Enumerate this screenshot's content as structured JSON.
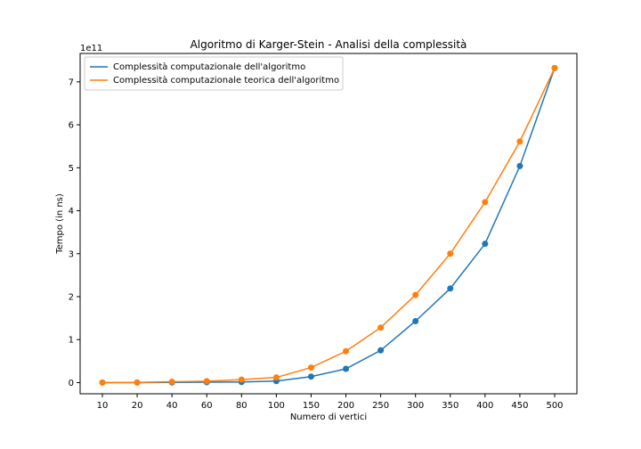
{
  "chart_data": {
    "type": "line",
    "title": "Algoritmo di Karger-Stein - Analisi della complessità",
    "xlabel": "Numero di vertici",
    "ylabel": "Tempo (in ns)",
    "y_offset_label": "1e11",
    "categories": [
      "10",
      "20",
      "40",
      "60",
      "80",
      "100",
      "150",
      "200",
      "250",
      "300",
      "350",
      "400",
      "450",
      "500"
    ],
    "yticks": [
      "0",
      "1",
      "2",
      "3",
      "4",
      "5",
      "6",
      "7"
    ],
    "ylim": [
      -0.26,
      7.66
    ],
    "legend_position": "upper-left",
    "grid": false,
    "series": [
      {
        "name": "Complessità computazionale dell'algoritmo",
        "color": "#1f77b4",
        "values": [
          0.0001,
          0.0005,
          0.003,
          0.009,
          0.015,
          0.035,
          0.14,
          0.32,
          0.75,
          1.43,
          2.19,
          3.23,
          5.04,
          7.32
        ]
      },
      {
        "name": "Complessità computazionale teorica dell'algoritmo",
        "color": "#ff7f0e",
        "values": [
          0.0006,
          0.0046,
          0.02,
          0.033,
          0.07,
          0.12,
          0.35,
          0.73,
          1.28,
          2.04,
          3.0,
          4.2,
          5.61,
          7.32
        ]
      }
    ]
  }
}
